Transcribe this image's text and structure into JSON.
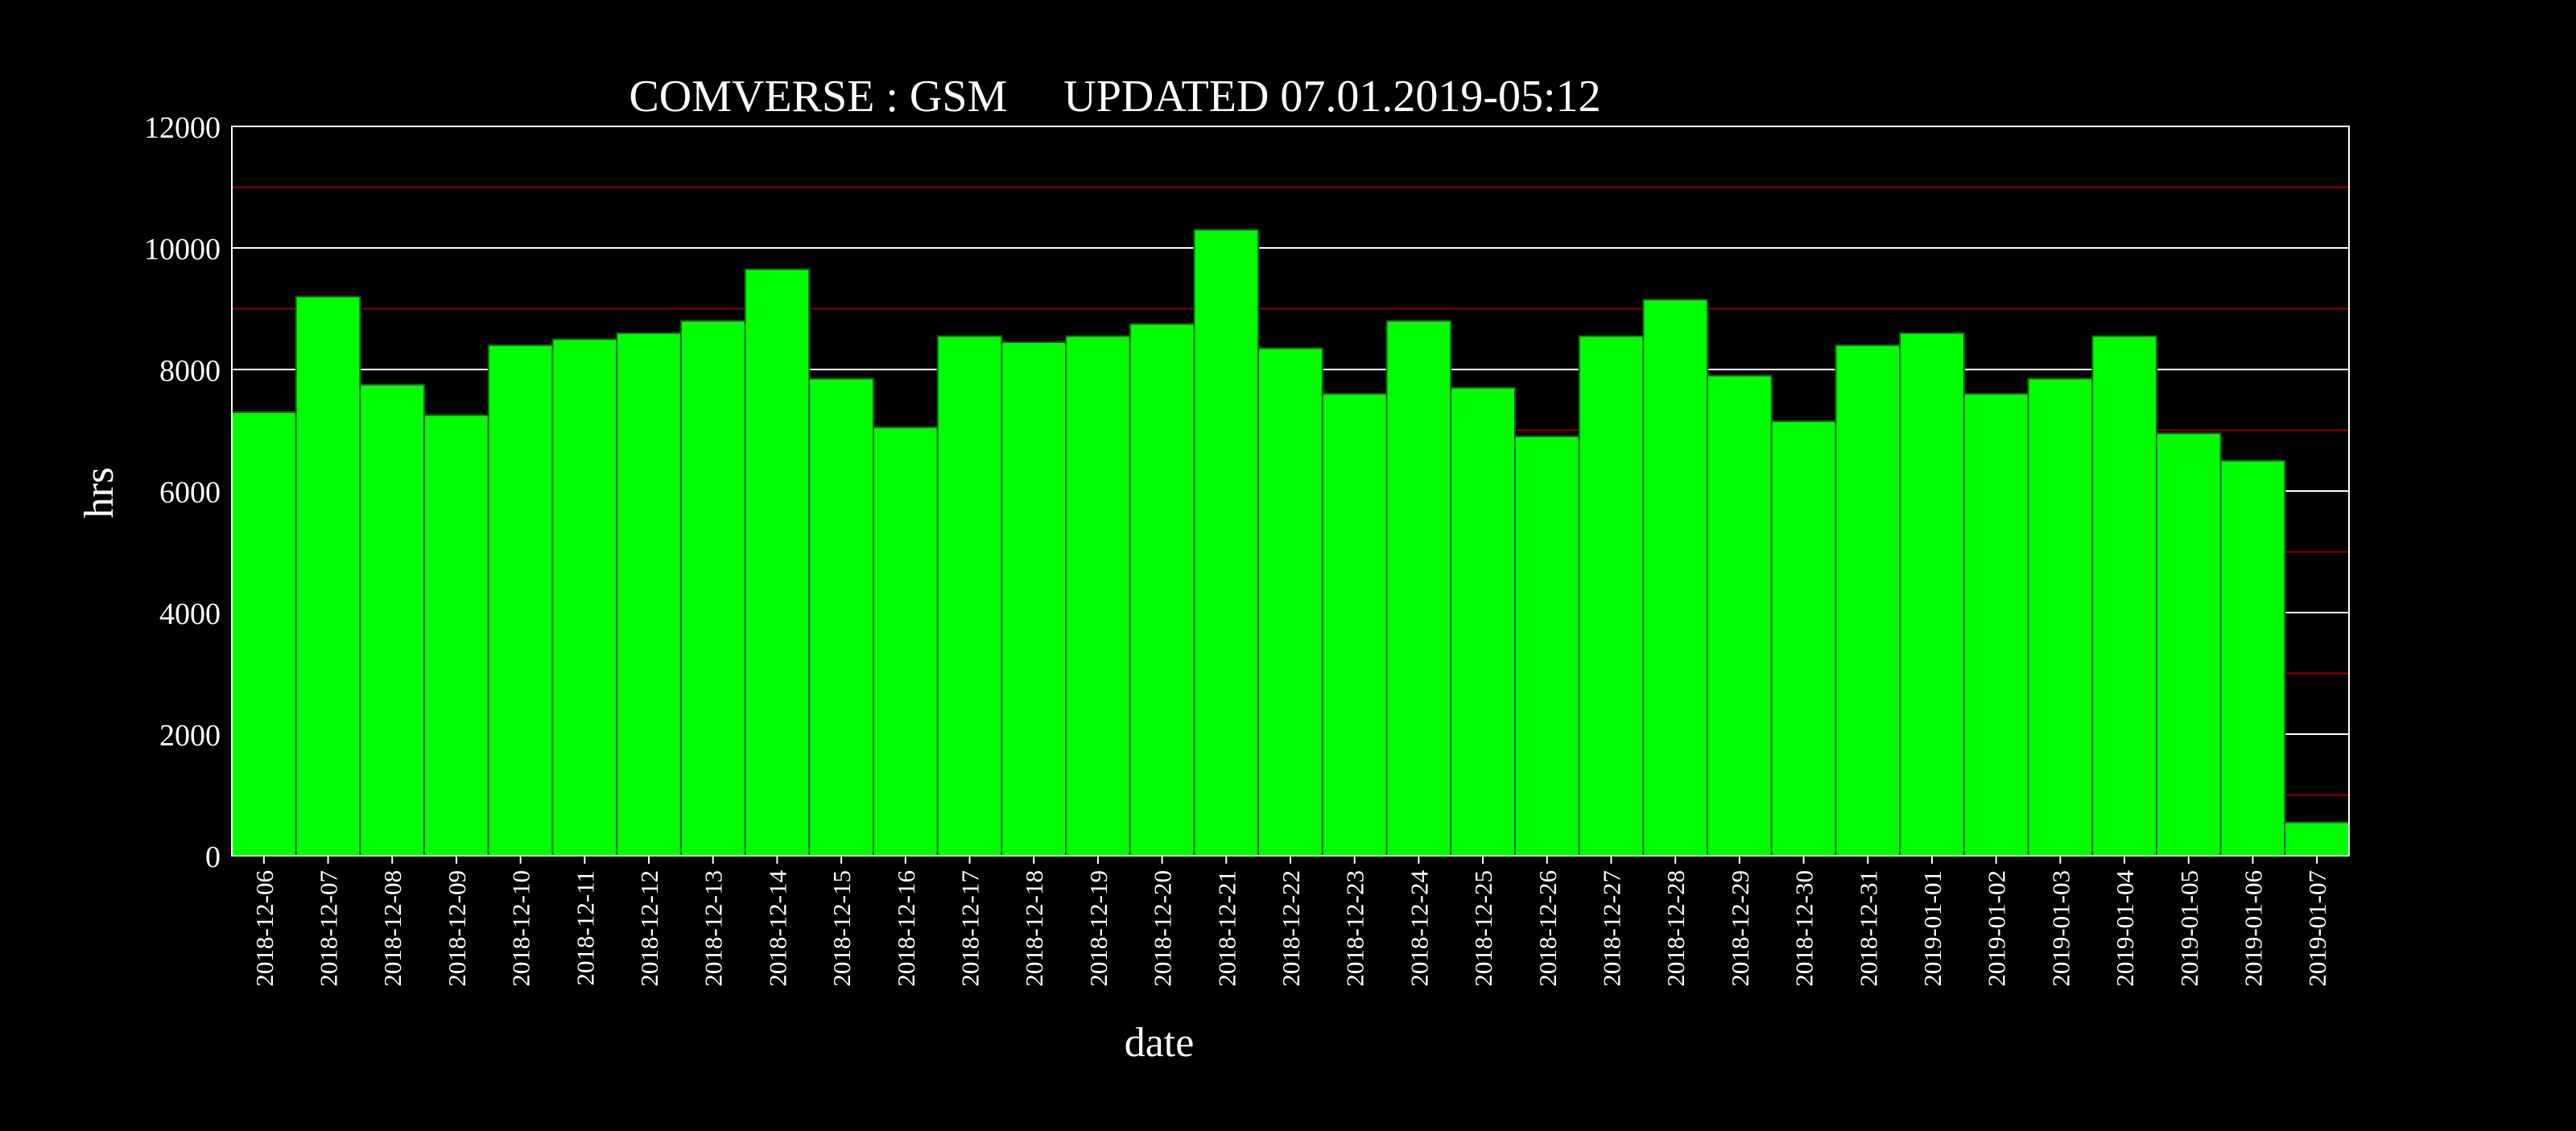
{
  "chart_data": {
    "type": "bar",
    "title": "COMVERSE : GSM     UPDATED 07.01.2019-05:12",
    "xlabel": "date",
    "ylabel": "hrs",
    "ylim": [
      0,
      12000
    ],
    "yticks": [
      0,
      2000,
      4000,
      6000,
      8000,
      10000,
      12000
    ],
    "grid": true,
    "legend": "none",
    "categories": [
      "2018-12-06",
      "2018-12-07",
      "2018-12-08",
      "2018-12-09",
      "2018-12-10",
      "2018-12-11",
      "2018-12-12",
      "2018-12-13",
      "2018-12-14",
      "2018-12-15",
      "2018-12-16",
      "2018-12-17",
      "2018-12-18",
      "2018-12-19",
      "2018-12-20",
      "2018-12-21",
      "2018-12-22",
      "2018-12-23",
      "2018-12-24",
      "2018-12-25",
      "2018-12-26",
      "2018-12-27",
      "2018-12-28",
      "2018-12-29",
      "2018-12-30",
      "2018-12-31",
      "2019-01-01",
      "2019-01-02",
      "2019-01-03",
      "2019-01-04",
      "2019-01-05",
      "2019-01-06",
      "2019-01-07"
    ],
    "values": [
      7300,
      9200,
      7750,
      7250,
      8400,
      8500,
      8600,
      8800,
      9650,
      7850,
      7050,
      8550,
      8450,
      8550,
      8750,
      10300,
      8350,
      7600,
      8800,
      7700,
      6900,
      8550,
      9150,
      7900,
      7150,
      8400,
      8600,
      7600,
      7850,
      8550,
      6950,
      6500,
      550
    ],
    "colors": {
      "background": "#000000",
      "bar": "#00ff00",
      "bar_edge": "#006600",
      "frame": "#ffffff",
      "major_grid": "#ffffff",
      "minor_grid": "#8b0000",
      "text": "#ffffff"
    }
  }
}
